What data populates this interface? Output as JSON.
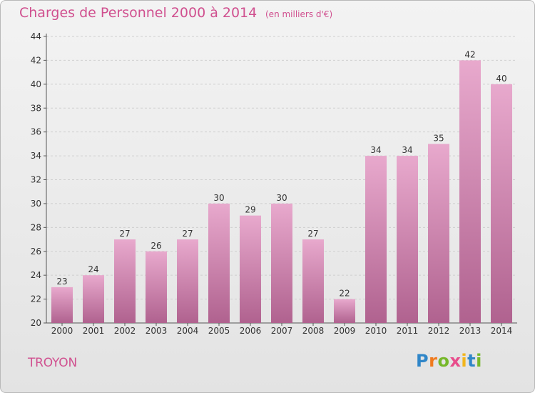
{
  "header": {
    "title": "Charges de Personnel 2000 à 2014",
    "subtitle": "(en milliers d'€)"
  },
  "footer": {
    "commune": "TROYON",
    "logo_text": "Proxiti",
    "logo_letters": [
      "P",
      "r",
      "o",
      "x",
      "i",
      "t",
      "i"
    ],
    "logo_colors": [
      "#2f86c8",
      "#f07a1e",
      "#76b82a",
      "#e84c8b",
      "#f2b51c",
      "#2f86c8",
      "#76b82a"
    ]
  },
  "colors": {
    "bar_top": "#e8a9cd",
    "bar_bottom": "#b0628f",
    "axis": "#555555",
    "grid": "#cfcfcf",
    "text": "#333333"
  },
  "chart_data": {
    "type": "bar",
    "title": "Charges de Personnel 2000 à 2014",
    "subtitle": "(en milliers d'€)",
    "xlabel": "",
    "ylabel": "",
    "categories": [
      "2000",
      "2001",
      "2002",
      "2003",
      "2004",
      "2005",
      "2006",
      "2007",
      "2008",
      "2009",
      "2010",
      "2011",
      "2012",
      "2013",
      "2014"
    ],
    "values": [
      23,
      24,
      27,
      26,
      27,
      30,
      29,
      30,
      27,
      22,
      34,
      34,
      35,
      42,
      40
    ],
    "ylim": [
      20,
      44
    ],
    "yticks": [
      20,
      22,
      24,
      26,
      28,
      30,
      32,
      34,
      36,
      38,
      40,
      42,
      44
    ],
    "grid": true,
    "data_labels": true
  }
}
